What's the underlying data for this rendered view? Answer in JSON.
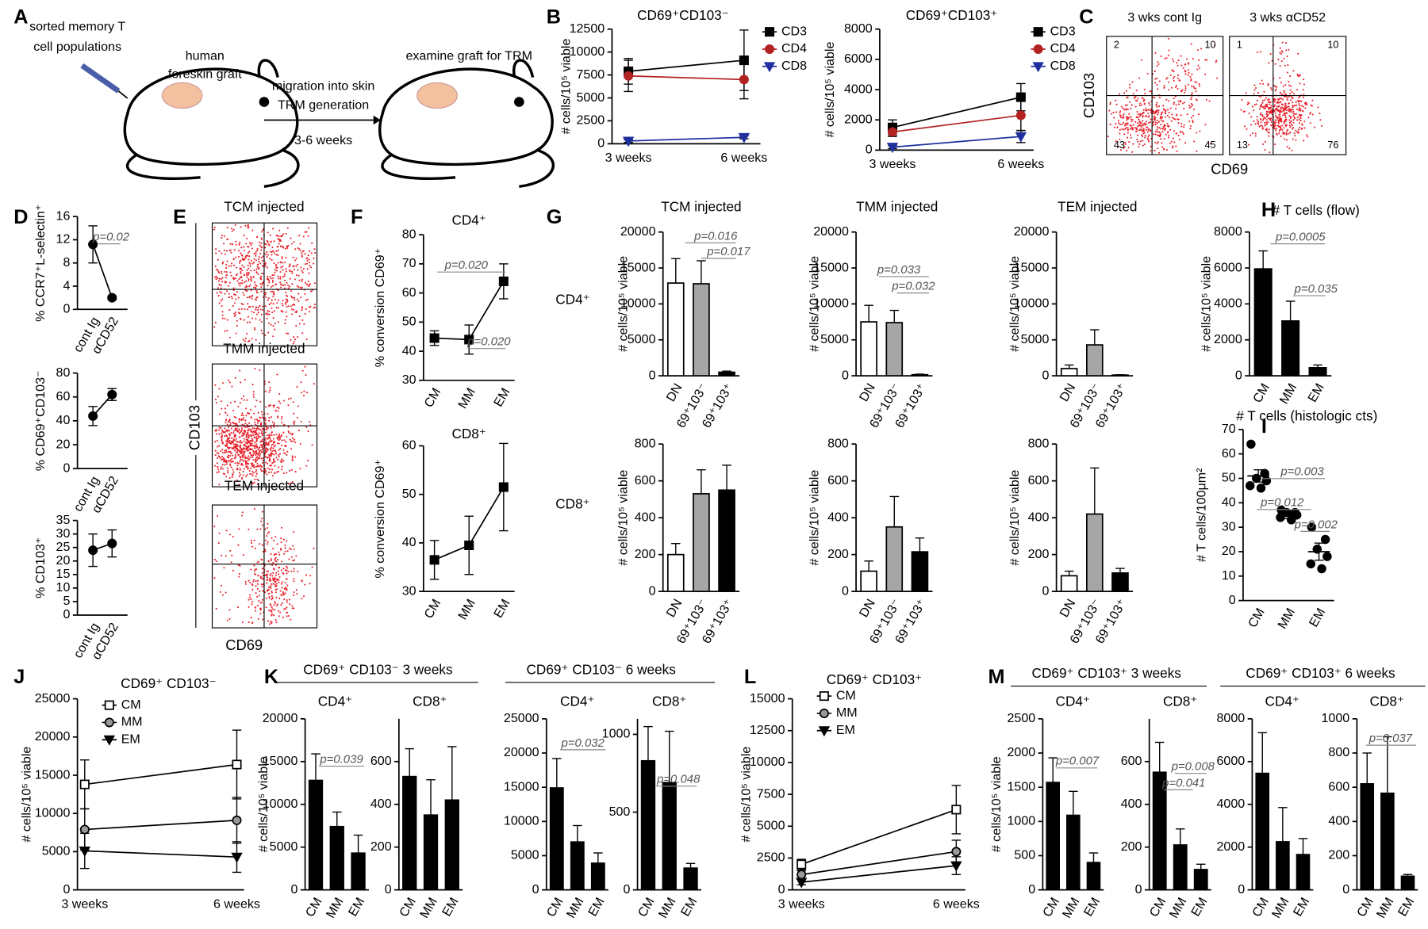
{
  "panel_labels": [
    "A",
    "B",
    "C",
    "D",
    "E",
    "F",
    "G",
    "H",
    "I",
    "J",
    "K",
    "L",
    "M"
  ],
  "panel_a": {
    "source_lines": [
      "sorted memory T",
      "cell populations"
    ],
    "graft_lines": [
      "human",
      "foreskin graft"
    ],
    "arrow_lines": [
      "migration into skin",
      "TRM generation",
      "3-6 weeks"
    ],
    "result": "examine graft for TRM"
  },
  "panel_c": {
    "titles": [
      "3 wks cont Ig",
      "3 wks αCD52"
    ],
    "quadrants": [
      [
        2,
        10,
        43,
        45
      ],
      [
        1,
        10,
        13,
        76
      ]
    ],
    "ylabel": "CD103",
    "xlabel": "CD69"
  },
  "panel_e": {
    "titles": [
      "TCM injected",
      "TMM injected",
      "TEM injected"
    ],
    "ylabel": "CD103",
    "xlabel": "CD69"
  },
  "g_rows": [
    "CD4⁺",
    "CD8⁺"
  ],
  "group_headers": [
    "CD69⁺ CD103⁻  3 weeks",
    "CD69⁺ CD103⁻  6 weeks",
    "CD69⁺ CD103⁺ 3 weeks",
    "CD69⁺ CD103⁺  6 weeks"
  ],
  "chart_data": [
    {
      "type": "line",
      "title": "CD69⁺CD103⁻",
      "ylabel": "# cells/10⁵ viable",
      "categories": [
        "3 weeks",
        "6 weeks"
      ],
      "ylim": [
        0,
        12500
      ],
      "yticks": [
        0,
        2500,
        5000,
        7500,
        10000,
        12500
      ],
      "series": [
        {
          "name": "CD3",
          "color": "#000000",
          "marker": "square",
          "values": [
            7900,
            9100
          ],
          "errors": [
            1400,
            3300
          ]
        },
        {
          "name": "CD4",
          "color": "#b22222",
          "marker": "circle",
          "values": [
            7400,
            7000
          ],
          "errors": [
            1700,
            2100
          ]
        },
        {
          "name": "CD8",
          "color": "#1f2f9e",
          "marker": "triangle",
          "values": [
            300,
            700
          ],
          "errors": [
            150,
            150
          ]
        }
      ]
    },
    {
      "type": "line",
      "title": "CD69⁺CD103⁺",
      "ylabel": "# cells/10⁵ viable",
      "categories": [
        "3 weeks",
        "6 weeks"
      ],
      "ylim": [
        0,
        8000
      ],
      "yticks": [
        0,
        2000,
        4000,
        6000,
        8000
      ],
      "series": [
        {
          "name": "CD3",
          "color": "#000000",
          "marker": "square",
          "values": [
            1500,
            3500
          ],
          "errors": [
            500,
            900
          ]
        },
        {
          "name": "CD4",
          "color": "#b22222",
          "marker": "circle",
          "values": [
            1200,
            2300
          ],
          "errors": [
            300,
            1000
          ]
        },
        {
          "name": "CD8",
          "color": "#1f2f9e",
          "marker": "triangle",
          "values": [
            200,
            900
          ],
          "errors": [
            100,
            400
          ]
        }
      ]
    },
    {
      "type": "line",
      "ylabel": "% CCR7⁺L-selectin⁺",
      "categories": [
        "cont Ig",
        "αCD52"
      ],
      "ylim": [
        0,
        16
      ],
      "yticks": [
        0,
        4,
        8,
        12,
        16
      ],
      "values": [
        11.2,
        2
      ],
      "errors": [
        3.2,
        0.3
      ],
      "color": "#000000",
      "marker": "circle",
      "annotations": [
        "p=0.02"
      ]
    },
    {
      "type": "line",
      "ylabel": "% CD69⁺CD103⁻",
      "categories": [
        "cont Ig",
        "αCD52"
      ],
      "ylim": [
        0,
        80
      ],
      "yticks": [
        0,
        20,
        40,
        60,
        80
      ],
      "values": [
        44,
        62
      ],
      "errors": [
        8,
        5
      ],
      "color": "#000000",
      "marker": "circle"
    },
    {
      "type": "line",
      "ylabel": "% CD103⁺",
      "categories": [
        "cont Ig",
        "αCD52"
      ],
      "ylim": [
        0,
        35
      ],
      "yticks": [
        0,
        5,
        10,
        15,
        20,
        25,
        30,
        35
      ],
      "values": [
        24,
        26.5
      ],
      "errors": [
        6,
        5
      ],
      "color": "#000000",
      "marker": "circle"
    },
    {
      "type": "line",
      "title": "CD4⁺",
      "ylabel": "% conversion  CD69⁺",
      "categories": [
        "CM",
        "MM",
        "EM"
      ],
      "ylim": [
        30,
        80
      ],
      "yticks": [
        30,
        40,
        50,
        60,
        70,
        80
      ],
      "values": [
        44.5,
        44,
        64
      ],
      "errors": [
        2.5,
        5,
        6
      ],
      "color": "#000000",
      "marker": "square",
      "annotations": [
        "p=0.020",
        "p=0.020"
      ]
    },
    {
      "type": "line",
      "title": "CD8⁺",
      "ylabel": "% conversion  CD69⁺",
      "categories": [
        "CM",
        "MM",
        "EM"
      ],
      "ylim": [
        30,
        60
      ],
      "yticks": [
        30,
        40,
        50,
        60
      ],
      "values": [
        36.5,
        39.5,
        51.5
      ],
      "errors": [
        4,
        6,
        9
      ],
      "color": "#000000",
      "marker": "square"
    },
    {
      "type": "bar",
      "title": "TCM injected",
      "ylabel": "# cells/10⁵ viable",
      "categories": [
        "DN",
        "69⁺103⁻",
        "69⁺103⁺"
      ],
      "colors": [
        "#ffffff",
        "#a6a6a6",
        "#000000"
      ],
      "ylim": [
        0,
        20000
      ],
      "yticks": [
        0,
        5000,
        10000,
        15000,
        20000
      ],
      "values": [
        12900,
        12800,
        500
      ],
      "errors": [
        3400,
        3200,
        150
      ],
      "annotations": [
        "p=0.016",
        "p=0.017"
      ]
    },
    {
      "type": "bar",
      "title": "TMM injected",
      "ylabel": "# cells/10⁵ viable",
      "categories": [
        "DN",
        "69⁺103⁻",
        "69⁺103⁺"
      ],
      "colors": [
        "#ffffff",
        "#a6a6a6",
        "#000000"
      ],
      "ylim": [
        0,
        20000
      ],
      "yticks": [
        0,
        5000,
        10000,
        15000,
        20000
      ],
      "values": [
        7500,
        7400,
        150
      ],
      "errors": [
        2300,
        1700,
        80
      ],
      "annotations": [
        "p=0.033",
        "p=0.032"
      ]
    },
    {
      "type": "bar",
      "title": "TEM injected",
      "ylabel": "# cells/10⁵ viable",
      "categories": [
        "DN",
        "69⁺103⁻",
        "69⁺103⁺"
      ],
      "colors": [
        "#ffffff",
        "#a6a6a6",
        "#000000"
      ],
      "ylim": [
        0,
        20000
      ],
      "yticks": [
        0,
        5000,
        10000,
        15000,
        20000
      ],
      "values": [
        1000,
        4300,
        100
      ],
      "errors": [
        500,
        2100,
        50
      ]
    },
    {
      "type": "bar",
      "ylabel": "# cells/10⁵ viable",
      "categories": [
        "DN",
        "69⁺103⁻",
        "69⁺103⁺"
      ],
      "colors": [
        "#ffffff",
        "#a6a6a6",
        "#000000"
      ],
      "ylim": [
        0,
        800
      ],
      "yticks": [
        0,
        200,
        400,
        600,
        800
      ],
      "values": [
        200,
        530,
        550
      ],
      "errors": [
        60,
        130,
        135
      ]
    },
    {
      "type": "bar",
      "ylabel": "# cells/10⁵ viable",
      "categories": [
        "DN",
        "69⁺103⁻",
        "69⁺103⁺"
      ],
      "colors": [
        "#ffffff",
        "#a6a6a6",
        "#000000"
      ],
      "ylim": [
        0,
        800
      ],
      "yticks": [
        0,
        200,
        400,
        600,
        800
      ],
      "values": [
        110,
        350,
        215
      ],
      "errors": [
        55,
        165,
        75
      ]
    },
    {
      "type": "bar",
      "ylabel": "# cells/10⁵ viable",
      "categories": [
        "DN",
        "69⁺103⁻",
        "69⁺103⁺"
      ],
      "colors": [
        "#ffffff",
        "#a6a6a6",
        "#000000"
      ],
      "ylim": [
        0,
        800
      ],
      "yticks": [
        0,
        200,
        400,
        600,
        800
      ],
      "values": [
        85,
        420,
        100
      ],
      "errors": [
        25,
        250,
        25
      ]
    },
    {
      "type": "bar",
      "title": "#  T cells  (flow)",
      "ylabel": "# cells/10⁵ viable",
      "categories": [
        "CM",
        "MM",
        "EM"
      ],
      "color": "#000000",
      "ylim": [
        0,
        8000
      ],
      "yticks": [
        0,
        2000,
        4000,
        6000,
        8000
      ],
      "values": [
        5950,
        3050,
        450
      ],
      "errors": [
        1000,
        1100,
        150
      ],
      "annotations": [
        "p=0.0005",
        "p=0.035"
      ]
    },
    {
      "type": "dot",
      "title": "#  T cells (histologic cts)",
      "ylabel": "# T cells/100μm²",
      "categories": [
        "CM",
        "MM",
        "EM"
      ],
      "ylim": [
        0,
        70
      ],
      "yticks": [
        0,
        10,
        20,
        30,
        40,
        50,
        60,
        70
      ],
      "values": [
        51,
        35,
        20
      ],
      "errors": [
        2.5,
        1.5,
        3.5
      ],
      "points": [
        [
          64,
          52,
          50,
          49,
          47,
          46
        ],
        [
          37,
          36,
          36,
          35,
          34,
          33
        ],
        [
          30,
          25,
          21,
          18,
          15,
          13
        ]
      ],
      "annotations": [
        "p=0.003",
        "p=0.012",
        "p=0.002"
      ]
    },
    {
      "type": "line",
      "title": "CD69⁺ CD103⁻",
      "ylabel": "# cells/10⁵ viable",
      "categories": [
        "3 weeks",
        "6 weeks"
      ],
      "ylim": [
        0,
        25000
      ],
      "yticks": [
        0,
        5000,
        10000,
        15000,
        20000,
        25000
      ],
      "line_color": "#000000",
      "series": [
        {
          "name": "CM",
          "color": "#ffffff",
          "marker": "square",
          "values": [
            13800,
            16400
          ],
          "errors": [
            3200,
            4500
          ]
        },
        {
          "name": "MM",
          "color": "#999999",
          "marker": "circle",
          "values": [
            7900,
            9100
          ],
          "errors": [
            2700,
            3000
          ]
        },
        {
          "name": "EM",
          "color": "#000000",
          "marker": "triangle",
          "values": [
            5100,
            4300
          ],
          "errors": [
            2300,
            2000
          ]
        }
      ]
    },
    {
      "type": "bar",
      "title": "CD4⁺",
      "ylabel": "# cells/10⁵ viable",
      "categories": [
        "CM",
        "MM",
        "EM"
      ],
      "color": "#000000",
      "ylim": [
        0,
        20000
      ],
      "yticks": [
        0,
        5000,
        10000,
        15000,
        20000
      ],
      "values": [
        12800,
        7400,
        4300
      ],
      "errors": [
        3100,
        1700,
        2100
      ],
      "annotations": [
        "p=0.039"
      ]
    },
    {
      "type": "bar",
      "title": "CD8⁺",
      "categories": [
        "CM",
        "MM",
        "EM"
      ],
      "color": "#000000",
      "ylim": [
        0,
        800
      ],
      "yticks": [
        0,
        200,
        400,
        600
      ],
      "values": [
        530,
        350,
        420
      ],
      "errors": [
        130,
        165,
        250
      ]
    },
    {
      "type": "bar",
      "title": "CD4⁺",
      "categories": [
        "CM",
        "MM",
        "EM"
      ],
      "color": "#000000",
      "ylim": [
        0,
        25000
      ],
      "yticks": [
        0,
        5000,
        10000,
        15000,
        20000,
        25000
      ],
      "values": [
        14900,
        7000,
        3900
      ],
      "errors": [
        4300,
        2400,
        1500
      ],
      "annotations": [
        "p=0.032"
      ]
    },
    {
      "type": "bar",
      "title": "CD8⁺",
      "categories": [
        "CM",
        "MM",
        "EM"
      ],
      "color": "#000000",
      "ylim": [
        0,
        1100
      ],
      "yticks": [
        0,
        500,
        1000
      ],
      "values": [
        830,
        690,
        140
      ],
      "errors": [
        220,
        330,
        30
      ],
      "annotations": [
        "p=0.048"
      ]
    },
    {
      "type": "line",
      "title": "CD69⁺ CD103⁺",
      "ylabel": "# cells/10⁵ viable",
      "categories": [
        "3 weeks",
        "6 weeks"
      ],
      "ylim": [
        0,
        15000
      ],
      "yticks": [
        0,
        2500,
        5000,
        7500,
        10000,
        12500,
        15000
      ],
      "line_color": "#000000",
      "series": [
        {
          "name": "CM",
          "color": "#ffffff",
          "marker": "square",
          "values": [
            2000,
            6300
          ],
          "errors": [
            400,
            1900
          ]
        },
        {
          "name": "MM",
          "color": "#999999",
          "marker": "circle",
          "values": [
            1200,
            3000
          ],
          "errors": [
            300,
            900
          ]
        },
        {
          "name": "EM",
          "color": "#000000",
          "marker": "triangle",
          "values": [
            600,
            1900
          ],
          "errors": [
            200,
            700
          ]
        }
      ]
    },
    {
      "type": "bar",
      "title": "CD4⁺",
      "ylabel": "# cells/10⁵ viable",
      "categories": [
        "CM",
        "MM",
        "EM"
      ],
      "color": "#000000",
      "ylim": [
        0,
        2500
      ],
      "yticks": [
        0,
        500,
        1000,
        1500,
        2000,
        2500
      ],
      "values": [
        1570,
        1090,
        400
      ],
      "errors": [
        360,
        350,
        140
      ],
      "annotations": [
        "p=0.007"
      ]
    },
    {
      "type": "bar",
      "title": "CD8⁺",
      "categories": [
        "CM",
        "MM",
        "EM"
      ],
      "color": "#000000",
      "ylim": [
        0,
        800
      ],
      "yticks": [
        0,
        200,
        400,
        600
      ],
      "values": [
        550,
        210,
        95
      ],
      "errors": [
        140,
        75,
        25
      ],
      "annotations": [
        "p=0.008",
        "p=0.041"
      ]
    },
    {
      "type": "bar",
      "title": "CD4⁺",
      "categories": [
        "CM",
        "MM",
        "EM"
      ],
      "color": "#000000",
      "ylim": [
        0,
        8000
      ],
      "yticks": [
        0,
        2000,
        4000,
        6000,
        8000
      ],
      "values": [
        5450,
        2250,
        1650
      ],
      "errors": [
        1900,
        1600,
        750
      ]
    },
    {
      "type": "bar",
      "title": "CD8⁺",
      "categories": [
        "CM",
        "MM",
        "EM"
      ],
      "color": "#000000",
      "ylim": [
        0,
        1000
      ],
      "yticks": [
        0,
        200,
        400,
        600,
        800,
        1000
      ],
      "values": [
        620,
        565,
        80
      ],
      "errors": [
        180,
        330,
        10
      ],
      "annotations": [
        "p=0.037"
      ]
    }
  ]
}
